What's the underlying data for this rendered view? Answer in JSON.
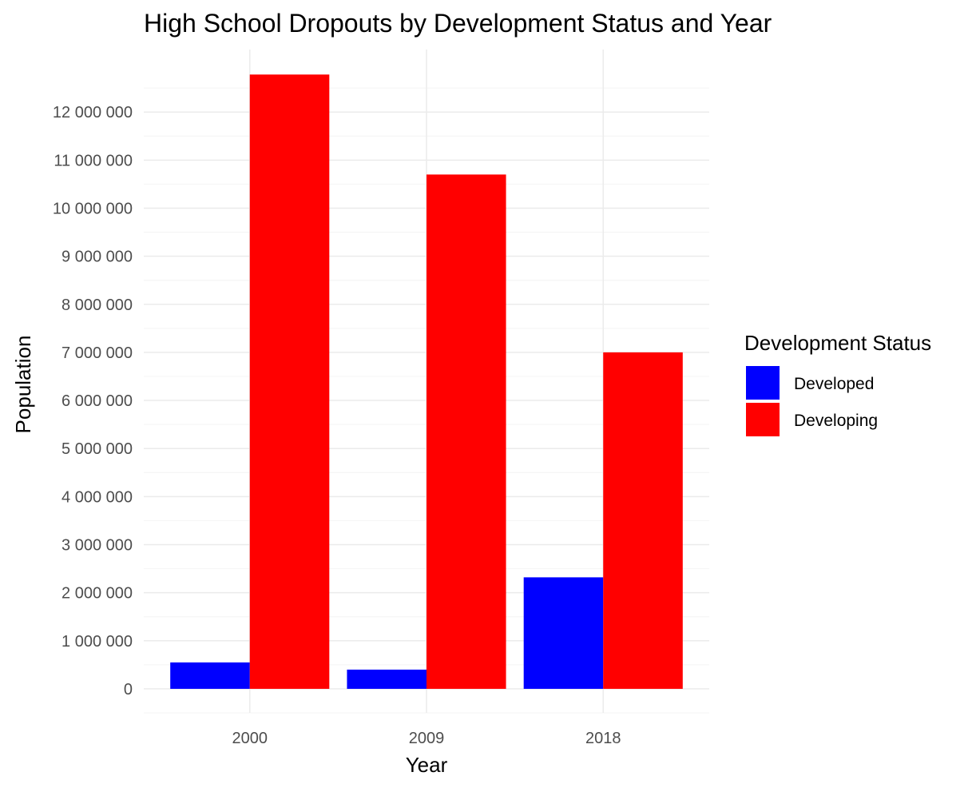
{
  "chart_data": {
    "type": "bar",
    "title": "High School Dropouts by Development Status and Year",
    "xlabel": "Year",
    "ylabel": "Population",
    "categories": [
      "2000",
      "2009",
      "2018"
    ],
    "series": [
      {
        "name": "Developed",
        "color": "#0000ff",
        "values": [
          550000,
          400000,
          2320000
        ]
      },
      {
        "name": "Developing",
        "color": "#ff0000",
        "values": [
          12780000,
          10700000,
          7000000
        ]
      }
    ],
    "ylim": [
      -500000,
      13300000
    ],
    "yticks": [
      0,
      1000000,
      2000000,
      3000000,
      4000000,
      5000000,
      6000000,
      7000000,
      8000000,
      9000000,
      10000000,
      11000000,
      12000000
    ],
    "ytick_labels": [
      "0",
      "1 000 000",
      "2 000 000",
      "3 000 000",
      "4 000 000",
      "5 000 000",
      "6 000 000",
      "7 000 000",
      "8 000 000",
      "9 000 000",
      "10 000 000",
      "11 000 000",
      "12 000 000"
    ],
    "grid": true,
    "legend": {
      "title": "Development Status",
      "position": "right",
      "entries": [
        "Developed",
        "Developing"
      ]
    }
  }
}
